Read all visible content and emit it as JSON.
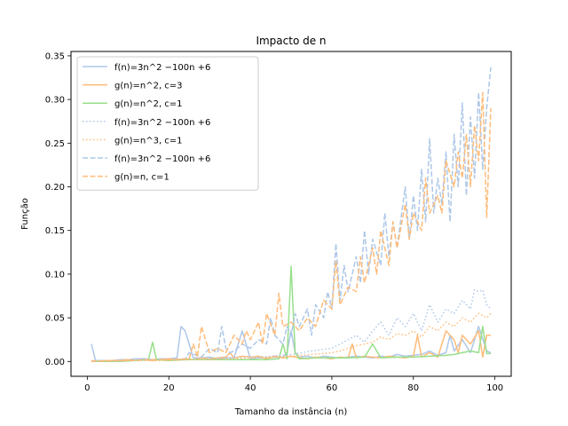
{
  "chart_data": {
    "type": "line",
    "title": "Impacto de n",
    "xlabel": "Tamanho da instância (n)",
    "ylabel": "Função",
    "xlim": [
      -4,
      104
    ],
    "ylim": [
      -0.017,
      0.355
    ],
    "xticks": [
      0,
      20,
      40,
      60,
      80,
      100
    ],
    "yticks": [
      0.0,
      0.05,
      0.1,
      0.15,
      0.2,
      0.25,
      0.3,
      0.35
    ],
    "ytick_labels": [
      "0.00",
      "0.05",
      "0.10",
      "0.15",
      "0.20",
      "0.25",
      "0.30",
      "0.35"
    ],
    "legend": "upper-left",
    "grid": false,
    "series": [
      {
        "name": "f(n)=3n^2 −100n +6",
        "style": "solid",
        "color": "#aec7e8",
        "x": [
          1,
          2,
          4,
          6,
          8,
          10,
          12,
          14,
          16,
          18,
          20,
          22,
          23,
          24,
          26,
          28,
          30,
          32,
          34,
          36,
          38,
          40,
          42,
          44,
          46,
          48,
          49,
          50,
          51,
          52,
          54,
          56,
          58,
          60,
          62,
          64,
          66,
          68,
          70,
          72,
          74,
          76,
          78,
          80,
          82,
          84,
          86,
          88,
          89,
          90,
          92,
          94,
          96,
          98,
          99
        ],
        "y": [
          0.02,
          0.001,
          0.001,
          0.001,
          0.002,
          0.002,
          0.003,
          0.003,
          0.002,
          0.003,
          0.003,
          0.004,
          0.04,
          0.035,
          0.004,
          0.004,
          0.005,
          0.003,
          0.004,
          0.004,
          0.035,
          0.003,
          0.004,
          0.004,
          0.005,
          0.005,
          0.01,
          0.035,
          0.01,
          0.005,
          0.006,
          0.004,
          0.006,
          0.005,
          0.004,
          0.005,
          0.006,
          0.005,
          0.004,
          0.006,
          0.005,
          0.008,
          0.006,
          0.007,
          0.008,
          0.012,
          0.007,
          0.01,
          0.03,
          0.012,
          0.025,
          0.01,
          0.04,
          0.012,
          0.01
        ]
      },
      {
        "name": "g(n)=n^2, c=3",
        "style": "solid",
        "color": "#ffbb78",
        "x": [
          1,
          3,
          5,
          8,
          10,
          12,
          14,
          16,
          18,
          20,
          22,
          24,
          26,
          28,
          30,
          32,
          34,
          35,
          36,
          38,
          40,
          42,
          44,
          46,
          48,
          50,
          52,
          54,
          56,
          58,
          60,
          62,
          64,
          65,
          66,
          68,
          70,
          72,
          74,
          76,
          78,
          80,
          81,
          82,
          84,
          86,
          88,
          90,
          91,
          92,
          94,
          96,
          97,
          98,
          99
        ],
        "y": [
          0.001,
          0.0,
          0.001,
          0.001,
          0.002,
          0.001,
          0.002,
          0.001,
          0.002,
          0.003,
          0.002,
          0.003,
          0.002,
          0.004,
          0.003,
          0.004,
          0.005,
          0.01,
          0.004,
          0.006,
          0.005,
          0.006,
          0.003,
          0.006,
          0.004,
          0.006,
          0.004,
          0.003,
          0.005,
          0.004,
          0.003,
          0.005,
          0.004,
          0.02,
          0.004,
          0.006,
          0.005,
          0.004,
          0.006,
          0.005,
          0.004,
          0.006,
          0.03,
          0.005,
          0.01,
          0.005,
          0.035,
          0.025,
          0.01,
          0.03,
          0.02,
          0.035,
          0.005,
          0.03,
          0.03
        ]
      },
      {
        "name": "g(n)=n^2, c=1",
        "style": "solid",
        "color": "#98df8a",
        "x": [
          1,
          4,
          8,
          12,
          15,
          16,
          17,
          20,
          24,
          28,
          32,
          36,
          40,
          44,
          47,
          48,
          49,
          50,
          51,
          52,
          56,
          60,
          64,
          68,
          70,
          72,
          76,
          80,
          84,
          88,
          90,
          92,
          94,
          96,
          97,
          98,
          99
        ],
        "y": [
          0.0,
          0.0,
          0.0,
          0.001,
          0.002,
          0.022,
          0.002,
          0.001,
          0.002,
          0.002,
          0.002,
          0.002,
          0.002,
          0.002,
          0.003,
          0.02,
          0.003,
          0.109,
          0.01,
          0.003,
          0.004,
          0.004,
          0.004,
          0.005,
          0.02,
          0.004,
          0.005,
          0.005,
          0.006,
          0.007,
          0.008,
          0.01,
          0.012,
          0.01,
          0.04,
          0.009,
          0.009
        ]
      },
      {
        "name": "f(n)=3n^2 −100n +6",
        "style": "dotted",
        "color": "#aec7e8",
        "x": [
          1,
          5,
          10,
          15,
          20,
          25,
          30,
          35,
          40,
          45,
          50,
          55,
          60,
          62,
          64,
          66,
          68,
          70,
          72,
          74,
          76,
          78,
          80,
          82,
          84,
          86,
          88,
          90,
          92,
          94,
          95,
          96,
          97,
          98,
          99
        ],
        "y": [
          0.0,
          0.0,
          0.001,
          0.001,
          0.002,
          0.002,
          0.003,
          0.004,
          0.005,
          0.006,
          0.008,
          0.012,
          0.015,
          0.02,
          0.025,
          0.03,
          0.022,
          0.035,
          0.045,
          0.03,
          0.05,
          0.04,
          0.055,
          0.035,
          0.065,
          0.045,
          0.06,
          0.055,
          0.07,
          0.06,
          0.082,
          0.08,
          0.082,
          0.065,
          0.06
        ]
      },
      {
        "name": "g(n)=n^3, c=1",
        "style": "dotted",
        "color": "#ffbb78",
        "x": [
          1,
          5,
          10,
          15,
          20,
          25,
          30,
          35,
          40,
          45,
          50,
          55,
          60,
          62,
          64,
          66,
          68,
          70,
          72,
          74,
          76,
          78,
          80,
          82,
          84,
          86,
          88,
          90,
          92,
          94,
          96,
          98,
          99
        ],
        "y": [
          0.0,
          0.0,
          0.001,
          0.001,
          0.001,
          0.002,
          0.002,
          0.003,
          0.004,
          0.005,
          0.006,
          0.008,
          0.01,
          0.012,
          0.015,
          0.018,
          0.02,
          0.022,
          0.028,
          0.025,
          0.032,
          0.03,
          0.035,
          0.028,
          0.04,
          0.035,
          0.045,
          0.04,
          0.05,
          0.045,
          0.055,
          0.05,
          0.055
        ]
      },
      {
        "name": "f(n)=3n^2 −100n +6",
        "style": "dashed",
        "color": "#aec7e8",
        "x": [
          1,
          5,
          10,
          15,
          20,
          24,
          25,
          28,
          30,
          32,
          33,
          34,
          35,
          36,
          38,
          40,
          42,
          44,
          45,
          46,
          48,
          49,
          50,
          51,
          52,
          54,
          55,
          56,
          58,
          59,
          60,
          61,
          62,
          63,
          64,
          66,
          67,
          68,
          69,
          70,
          72,
          73,
          74,
          75,
          76,
          78,
          79,
          80,
          81,
          82,
          83,
          84,
          85,
          86,
          87,
          88,
          89,
          90,
          91,
          92,
          93,
          94,
          95,
          96,
          97,
          98,
          99
        ],
        "y": [
          0.0,
          0.001,
          0.001,
          0.002,
          0.002,
          0.003,
          0.01,
          0.005,
          0.015,
          0.01,
          0.04,
          0.015,
          0.01,
          0.012,
          0.02,
          0.015,
          0.025,
          0.02,
          0.05,
          0.03,
          0.02,
          0.04,
          0.03,
          0.055,
          0.04,
          0.06,
          0.03,
          0.065,
          0.05,
          0.08,
          0.06,
          0.135,
          0.07,
          0.11,
          0.08,
          0.12,
          0.09,
          0.15,
          0.1,
          0.14,
          0.11,
          0.17,
          0.12,
          0.16,
          0.13,
          0.2,
          0.14,
          0.19,
          0.15,
          0.22,
          0.16,
          0.255,
          0.17,
          0.21,
          0.18,
          0.24,
          0.16,
          0.26,
          0.2,
          0.296,
          0.19,
          0.28,
          0.21,
          0.308,
          0.22,
          0.29,
          0.337
        ]
      },
      {
        "name": "g(n)=n, c=1",
        "style": "dashed",
        "color": "#ffbb78",
        "x": [
          1,
          5,
          10,
          15,
          20,
          25,
          26,
          27,
          28,
          30,
          32,
          34,
          36,
          38,
          39,
          40,
          42,
          43,
          44,
          46,
          47,
          48,
          50,
          52,
          54,
          56,
          58,
          60,
          61,
          62,
          64,
          66,
          67,
          68,
          70,
          71,
          72,
          74,
          75,
          76,
          78,
          79,
          80,
          82,
          83,
          84,
          86,
          87,
          88,
          90,
          91,
          92,
          93,
          94,
          95,
          96,
          97,
          98,
          99
        ],
        "y": [
          0.0,
          0.001,
          0.001,
          0.002,
          0.002,
          0.003,
          0.02,
          0.005,
          0.04,
          0.01,
          0.015,
          0.01,
          0.03,
          0.02,
          0.035,
          0.025,
          0.045,
          0.02,
          0.055,
          0.03,
          0.078,
          0.04,
          0.045,
          0.035,
          0.05,
          0.04,
          0.07,
          0.06,
          0.115,
          0.065,
          0.085,
          0.08,
          0.12,
          0.09,
          0.13,
          0.1,
          0.15,
          0.11,
          0.16,
          0.13,
          0.18,
          0.14,
          0.17,
          0.15,
          0.21,
          0.17,
          0.19,
          0.17,
          0.23,
          0.2,
          0.24,
          0.21,
          0.26,
          0.2,
          0.27,
          0.23,
          0.308,
          0.165,
          0.29
        ]
      }
    ]
  }
}
